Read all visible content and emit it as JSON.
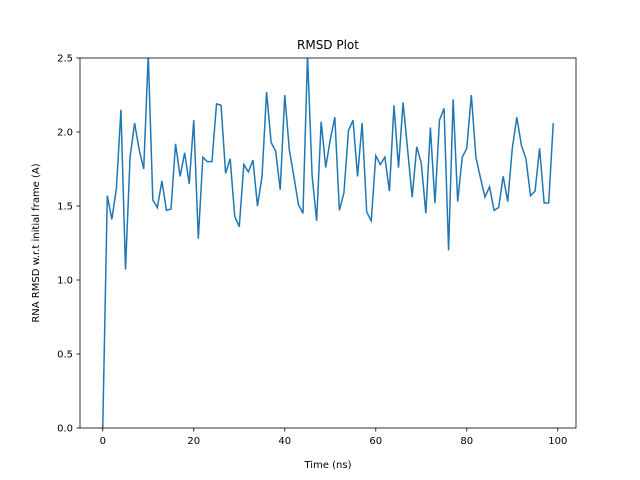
{
  "chart_data": {
    "type": "line",
    "title": "RMSD Plot",
    "xlabel": "Time (ns)",
    "ylabel": "RNA RMSD w.r.t initial frame (A)",
    "xlim": [
      -5,
      104
    ],
    "ylim": [
      0,
      2.5
    ],
    "xticks": [
      0,
      20,
      40,
      60,
      80,
      100
    ],
    "xtick_labels": [
      "0",
      "20",
      "40",
      "60",
      "80",
      "100"
    ],
    "yticks": [
      0.0,
      0.5,
      1.0,
      1.5,
      2.0,
      2.5
    ],
    "ytick_labels": [
      "0.0",
      "0.5",
      "1.0",
      "1.5",
      "2.0",
      "2.5"
    ],
    "grid": false,
    "color": "#1f77b4",
    "series": [
      {
        "x": [
          0,
          1,
          2,
          3,
          4,
          5,
          6,
          7,
          8,
          9,
          10,
          11,
          12,
          13,
          14,
          15,
          16,
          17,
          18,
          19,
          20,
          21,
          22,
          23,
          24,
          25,
          26,
          27,
          28,
          29,
          30,
          31,
          32,
          33,
          34,
          35,
          36,
          37,
          38,
          39,
          40,
          41,
          42,
          43,
          44,
          45,
          46,
          47,
          48,
          49,
          50,
          51,
          52,
          53,
          54,
          55,
          56,
          57,
          58,
          59,
          60,
          61,
          62,
          63,
          64,
          65,
          66,
          67,
          68,
          69,
          70,
          71,
          72,
          73,
          74,
          75,
          76,
          77,
          78,
          79,
          80,
          81,
          82,
          83,
          84,
          85,
          86,
          87,
          88,
          89,
          90,
          91,
          92,
          93,
          94,
          95,
          96,
          97,
          98,
          99
        ],
        "values": [
          0.0,
          1.57,
          1.41,
          1.62,
          2.15,
          1.07,
          1.83,
          2.06,
          1.88,
          1.75,
          2.52,
          1.54,
          1.49,
          1.67,
          1.47,
          1.48,
          1.92,
          1.7,
          1.86,
          1.65,
          2.08,
          1.28,
          1.83,
          1.8,
          1.8,
          2.19,
          2.18,
          1.72,
          1.82,
          1.43,
          1.36,
          1.78,
          1.73,
          1.81,
          1.5,
          1.7,
          2.27,
          1.93,
          1.87,
          1.61,
          2.25,
          1.88,
          1.7,
          1.51,
          1.45,
          2.52,
          1.71,
          1.4,
          2.07,
          1.76,
          1.95,
          2.1,
          1.47,
          1.59,
          2.01,
          2.08,
          1.7,
          2.06,
          1.46,
          1.4,
          1.84,
          1.78,
          1.83,
          1.6,
          2.18,
          1.76,
          2.2,
          1.88,
          1.56,
          1.9,
          1.79,
          1.45,
          2.03,
          1.52,
          2.08,
          2.16,
          1.2,
          2.22,
          1.53,
          1.83,
          1.89,
          2.25,
          1.83,
          1.69,
          1.56,
          1.63,
          1.47,
          1.49,
          1.7,
          1.53,
          1.89,
          2.1,
          1.91,
          1.82,
          1.57,
          1.6,
          1.89,
          1.52,
          1.52,
          2.06
        ]
      }
    ]
  }
}
